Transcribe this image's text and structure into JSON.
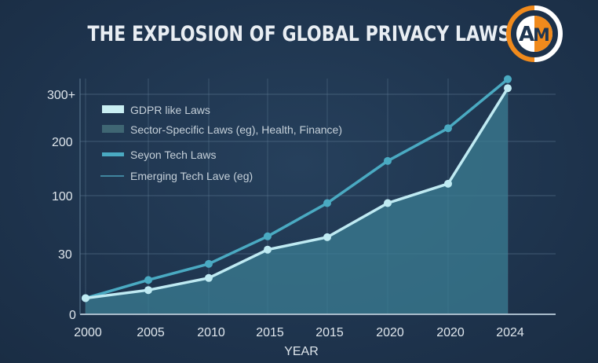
{
  "chart_data": {
    "type": "line",
    "title": "THE EXPLOSION OF GLOBAL PRIVACY LAWS",
    "xlabel": "YEAR",
    "ylabel": "",
    "categories": [
      "2000",
      "2005",
      "2010",
      "2015",
      "2015",
      "2020",
      "2020",
      "2024"
    ],
    "y_ticks": [
      "0",
      "30",
      "100",
      "200",
      "300+"
    ],
    "y_tick_values": [
      0,
      30,
      100,
      200,
      300
    ],
    "grid": true,
    "legend_position": "top-left",
    "legend": [
      {
        "label": "GDPR like Laws",
        "color": "#c9eef2",
        "swatch": "box"
      },
      {
        "label": "Sector-Specific Laws (eg), Health, Finance)",
        "color": "#3f6673",
        "swatch": "box"
      },
      {
        "label": "Seyon Tech Laws",
        "color": "#4aaac2",
        "swatch": "thick-line"
      },
      {
        "label": "Emerging Tech Lave (eg)",
        "color": "#4a9fb8",
        "swatch": "thin-line"
      }
    ],
    "series": [
      {
        "color": "#4aaac2",
        "values": [
          8,
          17,
          25,
          51,
          91,
          164,
          228,
          332
        ]
      },
      {
        "color": "#bfeaf2",
        "area": true,
        "area_color": "#3b7d93",
        "values": [
          8,
          12,
          18,
          35,
          50,
          91,
          122,
          313
        ]
      }
    ]
  },
  "logo": {
    "text": "AM",
    "colors": [
      "#f08a1c",
      "#ffffff"
    ]
  }
}
